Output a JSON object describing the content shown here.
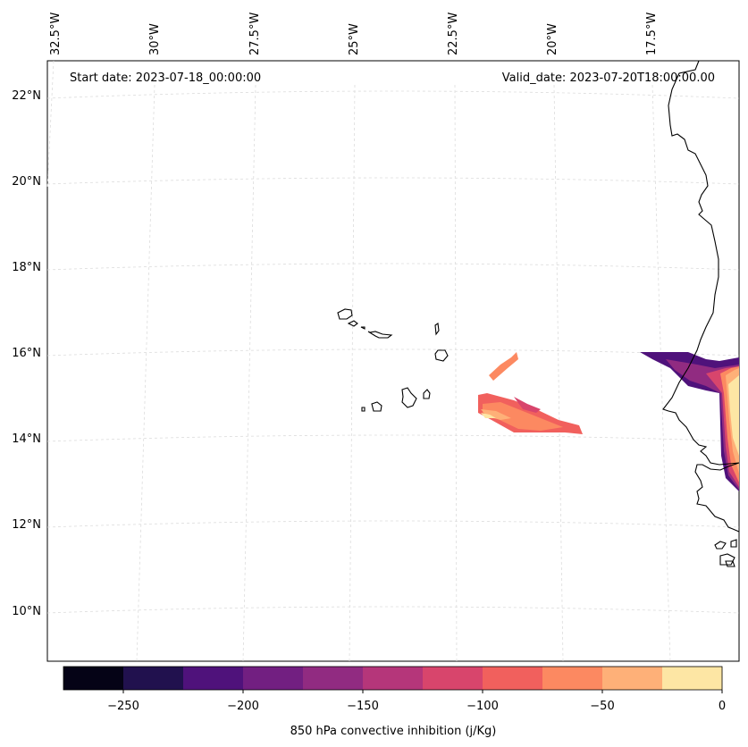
{
  "header": {
    "start_date": "Start date: 2023-07-18_00:00:00",
    "valid_date": "Valid_date: 2023-07-20T18:00:00.00"
  },
  "map": {
    "top_lon_labels": [
      "32.5°W",
      "30°W",
      "27.5°W",
      "25°W",
      "22.5°W",
      "20°W",
      "17.5°W"
    ],
    "left_lat_labels": [
      "22°N",
      "20°N",
      "18°N",
      "16°N",
      "14°N",
      "12°N",
      "10°N"
    ],
    "land_color": "#ffffff",
    "coast_color": "#000000",
    "grid_color": "#d9d9d9"
  },
  "colorbar": {
    "label": "850 hPa convective inhibition (j/Kg)",
    "tick_labels": [
      "−250",
      "−200",
      "−150",
      "−100",
      "−50",
      "0"
    ],
    "levels": [
      -275,
      -250,
      -225,
      -200,
      -175,
      -150,
      -125,
      -100,
      -75,
      -50,
      -25,
      0
    ],
    "colors": [
      "#050316",
      "#21114e",
      "#4f127b",
      "#721f81",
      "#912b81",
      "#b5367a",
      "#d8456c",
      "#f1605d",
      "#fc8961",
      "#feb078",
      "#fde6a4"
    ]
  }
}
